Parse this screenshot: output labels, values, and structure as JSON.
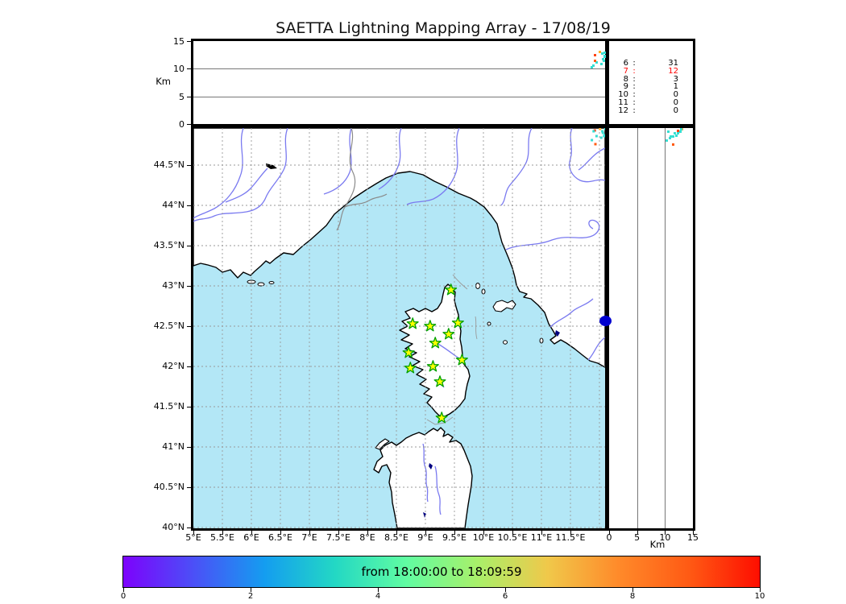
{
  "title": "SAETTA Lightning Mapping Array - 17/08/19",
  "top_panel": {
    "ylabel": "Km",
    "yticks": [
      "0",
      "5",
      "10",
      "15"
    ]
  },
  "legend": {
    "rows": [
      {
        "level": "6",
        "colon": ":",
        "count": "31",
        "color": "#000000"
      },
      {
        "level": "7",
        "colon": ":",
        "count": "12",
        "color": "#ff0000"
      },
      {
        "level": "8",
        "colon": ":",
        "count": "3",
        "color": "#000000"
      },
      {
        "level": "9",
        "colon": ":",
        "count": "1",
        "color": "#000000"
      },
      {
        "level": "10",
        "colon": ":",
        "count": "0",
        "color": "#000000"
      },
      {
        "level": "11",
        "colon": ":",
        "count": "0",
        "color": "#000000"
      },
      {
        "level": "12",
        "colon": ":",
        "count": "0",
        "color": "#000000"
      }
    ]
  },
  "map_panel": {
    "lat_ticks": [
      "44.5°N",
      "44°N",
      "43.5°N",
      "43°N",
      "42.5°N",
      "42°N",
      "41.5°N",
      "41°N",
      "40.5°N",
      "40°N"
    ],
    "lon_ticks": [
      "5°E",
      "5.5°E",
      "6°E",
      "6.5°E",
      "7°E",
      "7.5°E",
      "8°E",
      "8.5°E",
      "9°E",
      "9.5°E",
      "10°E",
      "10.5°E",
      "11°E",
      "11.5°E"
    ]
  },
  "right_panel": {
    "xlabel": "Km",
    "xticks": [
      "0",
      "5",
      "10",
      "15"
    ]
  },
  "colorbar": {
    "label": "from 18:00:00 to 18:09:59",
    "ticks": [
      "0",
      "2",
      "4",
      "6",
      "8",
      "10"
    ],
    "gradient": [
      "#7d02fc",
      "#4b50f7",
      "#149df0",
      "#23d8c4",
      "#60fca2",
      "#a8f06a",
      "#f0c84a",
      "#ff8a2a",
      "#ff5a14",
      "#fe0e00"
    ]
  },
  "colors": {
    "sea": "#b3e7f6",
    "land": "#ffffff",
    "coast": "#000000",
    "river": "#7a7af0",
    "boundary": "#8a8a8a",
    "grid": "#999999",
    "star_fill": "#ffff00",
    "star_stroke": "#00a000",
    "sensor": "#0000d0"
  },
  "chart_data": {
    "type": "scatter",
    "title": "SAETTA Lightning Mapping Array - 17/08/19",
    "time_window_label": "from 18:00:00 to 18:09:59",
    "colorbar_range": [
      0,
      10
    ],
    "panels": [
      {
        "id": "altitude-vs-longitude",
        "ylabel": "Km",
        "ylim": [
          0,
          15
        ],
        "yticks": [
          0,
          5,
          10,
          15
        ],
        "grid_y": [
          5,
          10
        ]
      },
      {
        "id": "map",
        "lat_ticks": [
          44.5,
          44,
          43.5,
          43,
          42.5,
          42,
          41.5,
          41,
          40.5,
          40
        ],
        "lon_ticks": [
          5,
          5.5,
          6,
          6.5,
          7,
          7.5,
          8,
          8.5,
          9,
          9.5,
          10,
          10.5,
          11,
          11.5
        ],
        "grid": "dashed 0.5 degree"
      },
      {
        "id": "altitude-vs-latitude",
        "xlabel": "Km",
        "xlim": [
          0,
          15
        ],
        "xticks": [
          0,
          5,
          10,
          15
        ],
        "grid_x": [
          5,
          10
        ]
      }
    ],
    "altitude_histogram_counts": [
      {
        "km": 6,
        "count": 31
      },
      {
        "km": 7,
        "count": 12,
        "highlighted": true
      },
      {
        "km": 8,
        "count": 3
      },
      {
        "km": 9,
        "count": 1
      },
      {
        "km": 10,
        "count": 0
      },
      {
        "km": 11,
        "count": 0
      },
      {
        "km": 12,
        "count": 0
      }
    ],
    "lightning_sources": [
      {
        "lon": 11.92,
        "lat": 44.93,
        "alt_km": 12.4,
        "color": "#ff4414"
      },
      {
        "lon": 12.01,
        "lat": 44.95,
        "alt_km": 13.1,
        "color": "#ffb028"
      },
      {
        "lon": 12.05,
        "lat": 44.92,
        "alt_km": 12.8,
        "color": "#35ded2"
      },
      {
        "lon": 12.1,
        "lat": 44.95,
        "alt_km": 12.9,
        "color": "#35ded2"
      },
      {
        "lon": 12.06,
        "lat": 44.9,
        "alt_km": 11.7,
        "color": "#35ded2"
      },
      {
        "lon": 12.09,
        "lat": 44.87,
        "alt_km": 12.1,
        "color": "#35ded2"
      },
      {
        "lon": 12.03,
        "lat": 44.84,
        "alt_km": 10.9,
        "color": "#35ded2"
      },
      {
        "lon": 11.95,
        "lat": 44.86,
        "alt_km": 11.1,
        "color": "#35ded2"
      },
      {
        "lon": 11.87,
        "lat": 44.81,
        "alt_km": 10.3,
        "color": "#35ded2"
      },
      {
        "lon": 12.08,
        "lat": 44.86,
        "alt_km": 11.4,
        "color": "#35ded2"
      },
      {
        "lon": 11.93,
        "lat": 44.76,
        "alt_km": 11.5,
        "color": "#ff5a10"
      },
      {
        "lon": 12.12,
        "lat": 44.9,
        "alt_km": 12.3,
        "color": "#35ded2"
      },
      {
        "lon": 11.9,
        "lat": 44.92,
        "alt_km": 10.6,
        "color": "#35ded2"
      }
    ],
    "stations_lonlat": [
      {
        "lon": 9.44,
        "lat": 42.95
      },
      {
        "lon": 8.78,
        "lat": 42.53
      },
      {
        "lon": 9.08,
        "lat": 42.5
      },
      {
        "lon": 9.56,
        "lat": 42.54
      },
      {
        "lon": 9.4,
        "lat": 42.4
      },
      {
        "lon": 9.17,
        "lat": 42.29
      },
      {
        "lon": 8.71,
        "lat": 42.17
      },
      {
        "lon": 9.63,
        "lat": 42.08
      },
      {
        "lon": 8.74,
        "lat": 41.98
      },
      {
        "lon": 9.13,
        "lat": 42.0
      },
      {
        "lon": 9.25,
        "lat": 41.81
      },
      {
        "lon": 9.28,
        "lat": 41.36
      }
    ],
    "sensor_marker": {
      "lon": 12.1,
      "lat": 42.57,
      "color": "#0000d0"
    }
  }
}
